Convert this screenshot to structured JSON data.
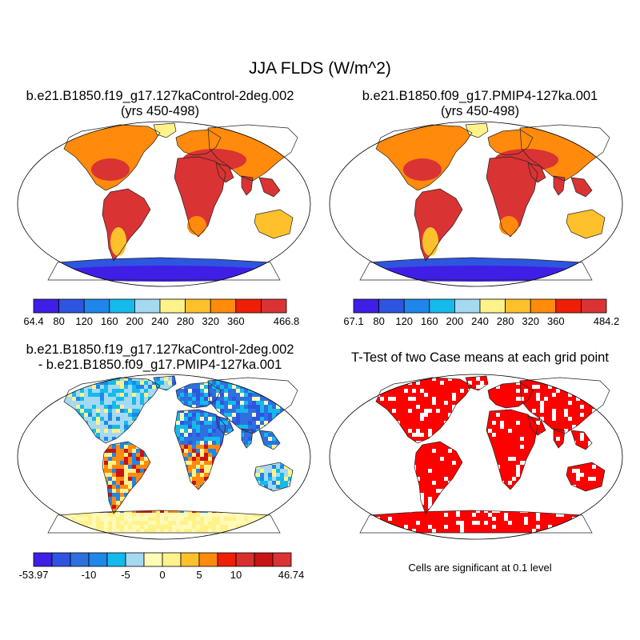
{
  "title": "JJA FLDS (W/m^2)",
  "panels": [
    {
      "line1": "b.e21.B1850.f19_g17.127kaControl-2deg.002",
      "line2": "(yrs 450-498)"
    },
    {
      "line1": "b.e21.B1850.f09_g17.PMIP4-127ka.001",
      "line2": "(yrs 450-498)"
    },
    {
      "line1": "b.e21.B1850.f19_g17.127kaControl-2deg.002",
      "line2": "- b.e21.B1850.f09_g17.PMIP4-127ka.001"
    },
    {
      "line1": "T-Test of two Case means at each grid point"
    }
  ],
  "colorbars": [
    {
      "name": "control",
      "colors": [
        "#3f1ee6",
        "#2e55df",
        "#1f86ea",
        "#14baeb",
        "#a5d9f2",
        "#fff28a",
        "#ffc12b",
        "#ff8a0c",
        "#ee1e07",
        "#d93333"
      ],
      "labels": [
        "64.4",
        "80",
        "120",
        "160",
        "200",
        "240",
        "280",
        "320",
        "360",
        "",
        "466.8"
      ]
    },
    {
      "name": "pmip4",
      "colors": [
        "#3f1ee6",
        "#2e55df",
        "#1f86ea",
        "#14baeb",
        "#a5d9f2",
        "#fff28a",
        "#ffc12b",
        "#ff8a0c",
        "#ee1e07",
        "#d93333"
      ],
      "labels": [
        "67.1",
        "80",
        "120",
        "160",
        "200",
        "240",
        "280",
        "320",
        "360",
        "",
        "484.2"
      ]
    },
    {
      "name": "difference",
      "colors": [
        "#3f1ee6",
        "#2e55df",
        "#2e70e0",
        "#1f86ea",
        "#14baeb",
        "#a5d9f2",
        "#fffab8",
        "#fff28a",
        "#ffc12b",
        "#ff8a0c",
        "#ee1e07",
        "#d92f2f",
        "#c81414",
        "#d93333"
      ],
      "labels": [
        "-53.97",
        "",
        "",
        "-10",
        "",
        "-5",
        "",
        "0",
        "",
        "5",
        "",
        "10",
        "",
        "",
        "46.74"
      ]
    }
  ],
  "footnote": "Cells are significant at 0.1 level",
  "colors": {
    "land_warm": "#d93333",
    "land_orange": "#ff8a0c",
    "antarctica": "#2e55df",
    "significant": "#ff0000",
    "diff_bg": "#a5d9f2"
  }
}
